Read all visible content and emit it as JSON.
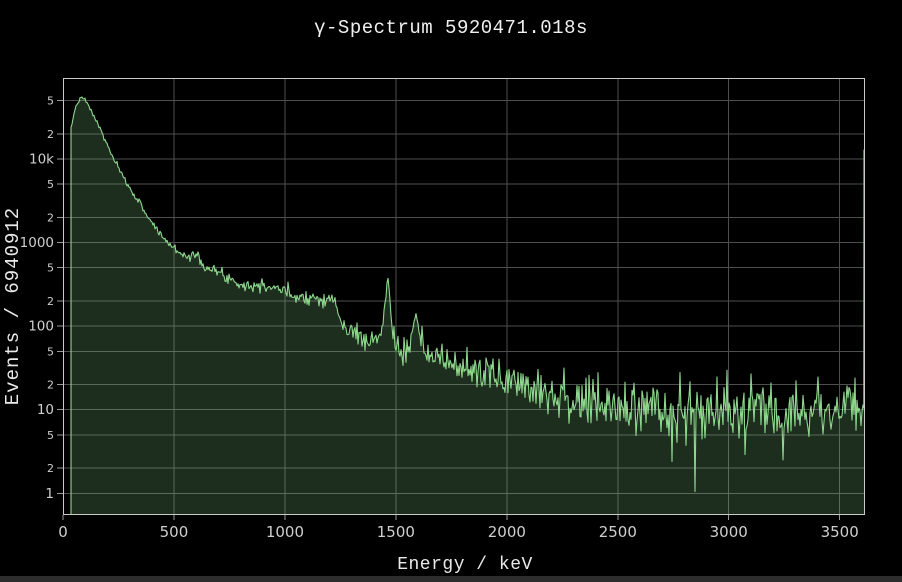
{
  "title": "γ-Spectrum 5920471.018s",
  "colors": {
    "background": "#000000",
    "line": "#8ed88e",
    "fill": "rgba(142,216,142,0.21)",
    "grid": "#4e4e4e",
    "frame": "#c9c9c9",
    "tick": "#999999",
    "tick_label": "#cfcfcf",
    "title_color": "#f0f0f0"
  },
  "chart_data": {
    "type": "area",
    "title": "γ-Spectrum 5920471.018s",
    "xlabel": "Energy / keV",
    "ylabel": "Events / 6940912",
    "x_scale": "linear",
    "y_scale": "log",
    "grid": true,
    "legend": false,
    "xlim": [
      0,
      3614
    ],
    "ylim_log": [
      0.55,
      93000
    ],
    "x_ticks": [
      0,
      500,
      1000,
      1500,
      2000,
      2500,
      3000,
      3500
    ],
    "y_ticks": [
      {
        "v": 1,
        "label": "1",
        "major": true
      },
      {
        "v": 2,
        "label": "2",
        "major": false
      },
      {
        "v": 5,
        "label": "5",
        "major": false
      },
      {
        "v": 10,
        "label": "10",
        "major": true
      },
      {
        "v": 20,
        "label": "2",
        "major": false
      },
      {
        "v": 50,
        "label": "5",
        "major": false
      },
      {
        "v": 100,
        "label": "100",
        "major": true
      },
      {
        "v": 200,
        "label": "2",
        "major": false
      },
      {
        "v": 500,
        "label": "5",
        "major": false
      },
      {
        "v": 1000,
        "label": "1000",
        "major": true
      },
      {
        "v": 2000,
        "label": "2",
        "major": false
      },
      {
        "v": 5000,
        "label": "5",
        "major": false
      },
      {
        "v": 10000,
        "label": "10k",
        "major": true
      },
      {
        "v": 20000,
        "label": "2",
        "major": false
      },
      {
        "v": 50000,
        "label": "5",
        "major": false
      }
    ],
    "backbone": [
      [
        36,
        22000
      ],
      [
        45,
        31000
      ],
      [
        55,
        40000
      ],
      [
        65,
        47000
      ],
      [
        75,
        51500
      ],
      [
        88,
        54000
      ],
      [
        100,
        50500
      ],
      [
        112,
        44500
      ],
      [
        125,
        38500
      ],
      [
        140,
        32000
      ],
      [
        155,
        27000
      ],
      [
        172,
        21500
      ],
      [
        190,
        16500
      ],
      [
        205,
        13800
      ],
      [
        220,
        11000
      ],
      [
        235,
        9300
      ],
      [
        255,
        7300
      ],
      [
        275,
        5800
      ],
      [
        295,
        4700
      ],
      [
        315,
        3900
      ],
      [
        335,
        3300
      ],
      [
        350,
        2850
      ],
      [
        365,
        2450
      ],
      [
        382,
        2050
      ],
      [
        400,
        1750
      ],
      [
        420,
        1470
      ],
      [
        440,
        1250
      ],
      [
        460,
        1090
      ],
      [
        480,
        950
      ],
      [
        500,
        860
      ],
      [
        520,
        790
      ],
      [
        540,
        730
      ],
      [
        560,
        680
      ],
      [
        575,
        655
      ],
      [
        583,
        810
      ],
      [
        591,
        665
      ],
      [
        601,
        645
      ],
      [
        609,
        790
      ],
      [
        617,
        640
      ],
      [
        632,
        560
      ],
      [
        650,
        500
      ],
      [
        670,
        465
      ],
      [
        695,
        440
      ],
      [
        720,
        415
      ],
      [
        750,
        375
      ],
      [
        780,
        340
      ],
      [
        810,
        318
      ],
      [
        840,
        302
      ],
      [
        870,
        300
      ],
      [
        901,
        345
      ],
      [
        922,
        292
      ],
      [
        945,
        295
      ],
      [
        965,
        298
      ],
      [
        985,
        268
      ],
      [
        1010,
        248
      ],
      [
        1045,
        232
      ],
      [
        1080,
        228
      ],
      [
        1115,
        222
      ],
      [
        1150,
        216
      ],
      [
        1185,
        212
      ],
      [
        1222,
        206
      ],
      [
        1233,
        175
      ],
      [
        1245,
        120
      ],
      [
        1262,
        100
      ],
      [
        1285,
        90
      ],
      [
        1310,
        84
      ],
      [
        1345,
        74
      ],
      [
        1380,
        68
      ],
      [
        1408,
        66
      ],
      [
        1428,
        75
      ],
      [
        1442,
        110
      ],
      [
        1452,
        200
      ],
      [
        1458,
        300
      ],
      [
        1462,
        335
      ],
      [
        1467,
        290
      ],
      [
        1473,
        195
      ],
      [
        1481,
        120
      ],
      [
        1490,
        85
      ],
      [
        1500,
        62
      ],
      [
        1512,
        50
      ],
      [
        1525,
        46
      ],
      [
        1540,
        47
      ],
      [
        1555,
        54
      ],
      [
        1568,
        66
      ],
      [
        1578,
        90
      ],
      [
        1585,
        118
      ],
      [
        1590,
        126
      ],
      [
        1597,
        100
      ],
      [
        1605,
        72
      ],
      [
        1615,
        58
      ],
      [
        1632,
        50
      ],
      [
        1655,
        45
      ],
      [
        1680,
        42
      ],
      [
        1710,
        39
      ],
      [
        1745,
        36
      ],
      [
        1780,
        34
      ],
      [
        1820,
        31
      ],
      [
        1860,
        29
      ],
      [
        1900,
        27
      ],
      [
        1945,
        25
      ],
      [
        1990,
        23.5
      ],
      [
        2030,
        22
      ],
      [
        2070,
        21
      ],
      [
        2100,
        20.5
      ],
      [
        2140,
        18.5
      ],
      [
        2180,
        17
      ],
      [
        2220,
        15.5
      ],
      [
        2260,
        14
      ],
      [
        2300,
        13
      ],
      [
        2345,
        12
      ],
      [
        2390,
        11
      ],
      [
        2430,
        11.3
      ],
      [
        2455,
        11.5
      ],
      [
        2480,
        10.5
      ],
      [
        2515,
        10
      ],
      [
        2550,
        10.8
      ],
      [
        2580,
        10.5
      ],
      [
        2610,
        12.5
      ],
      [
        2625,
        12
      ],
      [
        2650,
        10.5
      ],
      [
        2690,
        9.8
      ],
      [
        2730,
        9.5
      ],
      [
        2780,
        9.3
      ],
      [
        2830,
        9.2
      ],
      [
        2880,
        9.3
      ],
      [
        2940,
        9.5
      ],
      [
        3000,
        9.6
      ],
      [
        3080,
        9.8
      ],
      [
        3160,
        10
      ],
      [
        3240,
        10
      ],
      [
        3320,
        10.2
      ],
      [
        3400,
        10.3
      ],
      [
        3480,
        10.4
      ],
      [
        3550,
        10.5
      ],
      [
        3606,
        10.8
      ]
    ],
    "peaks_annotated": [
      {
        "energy": 583,
        "counts": 810
      },
      {
        "energy": 609,
        "counts": 790
      },
      {
        "energy": 1462,
        "counts": 335
      },
      {
        "energy": 1590,
        "counts": 126
      },
      {
        "energy": 2614,
        "counts": 13
      }
    ],
    "compton_edge": {
      "energy": 1240,
      "drop_from": 205,
      "drop_to": 110
    },
    "dips": [
      [
        2848,
        1.05
      ],
      [
        2744,
        2.4
      ],
      [
        3075,
        2.9
      ]
    ],
    "overflow_bin": {
      "energy": 3610,
      "value": 12800
    },
    "noise": {
      "seed": 7,
      "sigma": 1.15,
      "floor": 0.022
    }
  }
}
